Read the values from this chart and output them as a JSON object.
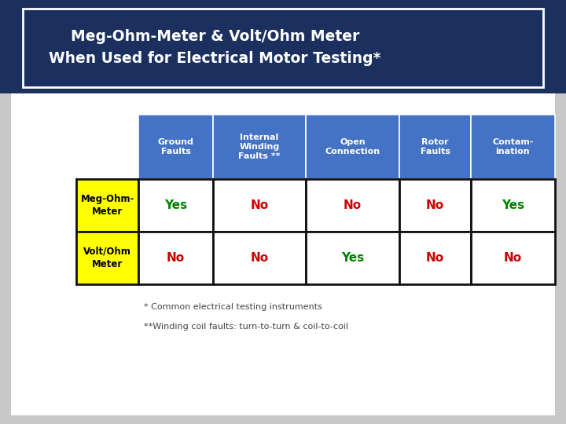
{
  "title_line1": "Meg-Ohm-Meter & Volt/Ohm Meter",
  "title_line2": "When Used for Electrical Motor Testing*",
  "title_bg_color": "#1c3060",
  "title_text_color": "#ffffff",
  "bg_color": "#c8c8c8",
  "inner_bg_color": "#ffffff",
  "header_bg_color": "#4472c4",
  "header_text_color": "#ffffff",
  "row_label_bg_color": "#ffff00",
  "row_label_text_color": "#000000",
  "cell_bg_color": "#ffffff",
  "yes_color": "#008000",
  "no_color": "#cc0000",
  "headers": [
    "Ground\nFaults",
    "Internal\nWinding\nFaults **",
    "Open\nConnection",
    "Rotor\nFaults",
    "Contam-\nination"
  ],
  "row_labels": [
    "Meg-Ohm-\nMeter",
    "Volt/Ohm\nMeter"
  ],
  "data": [
    [
      "Yes",
      "No",
      "No",
      "No",
      "Yes"
    ],
    [
      "No",
      "No",
      "Yes",
      "No",
      "No"
    ]
  ],
  "footnote1": "* Common electrical testing instruments",
  "footnote2": "**Winding coil faults: turn-to-turn & coil-to-coil",
  "footnote_color": "#444444",
  "border_color": "#111111"
}
